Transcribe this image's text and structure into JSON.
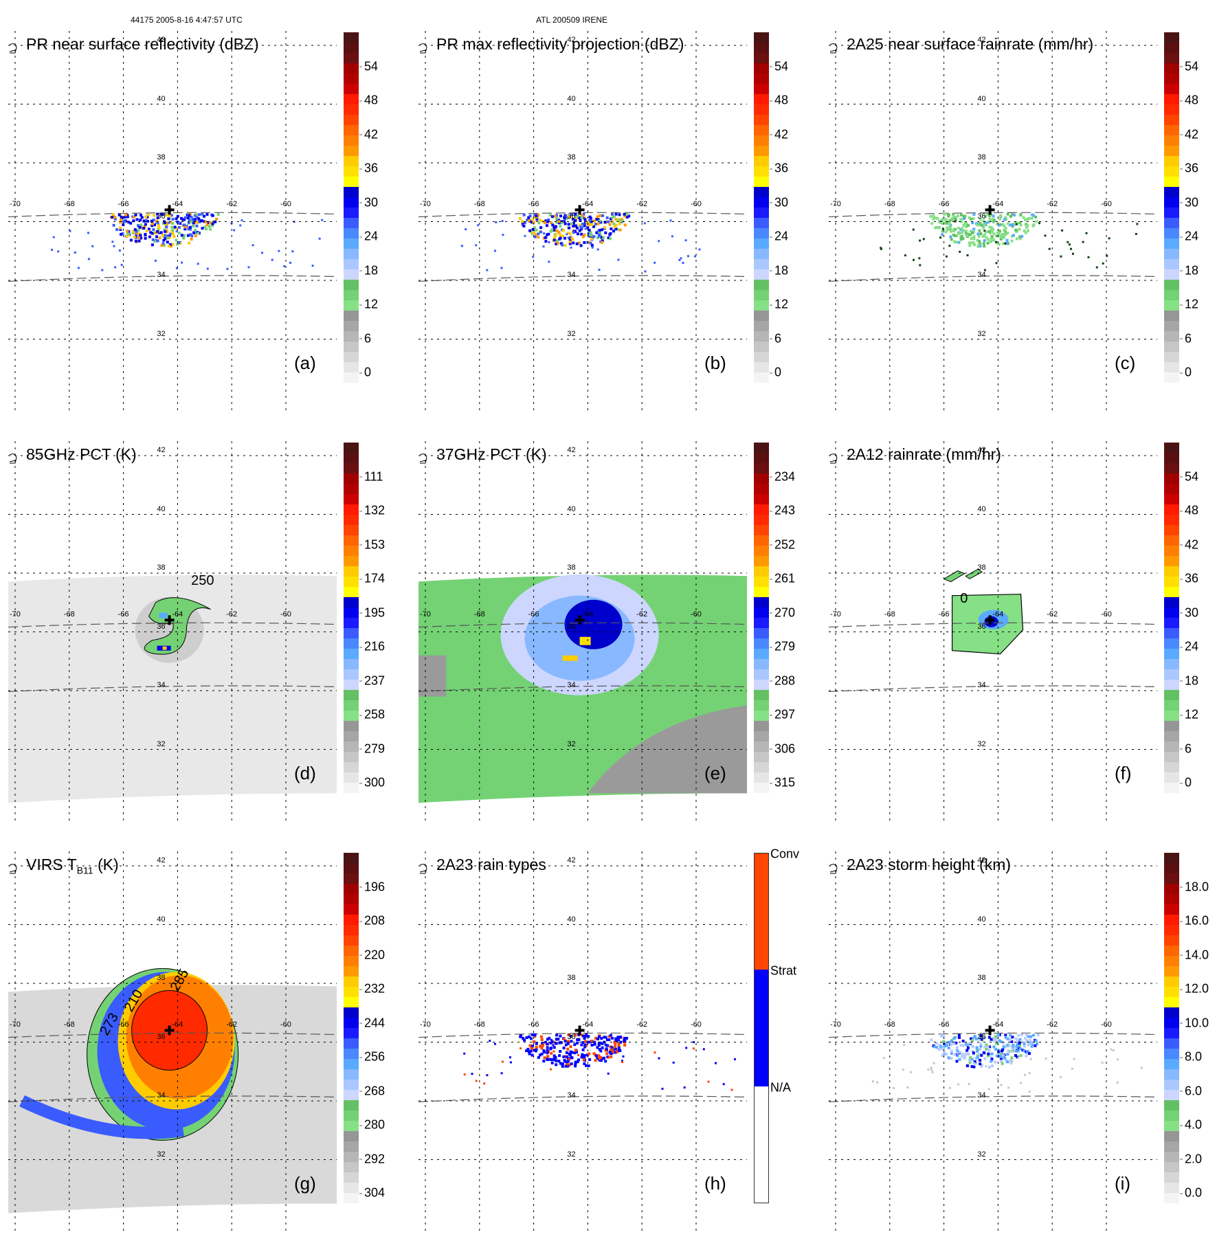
{
  "header": {
    "left": "44175 2005-8-16 4:47:57 UTC",
    "center": "ATL 200509 IRENE"
  },
  "chart_data": [
    {
      "id": "a",
      "type": "heatmap",
      "title": "PR near surface reflectivity (dBZ)",
      "panel_label": "(a)",
      "colorbar": {
        "ticks": [
          "54",
          "48",
          "42",
          "36",
          "30",
          "24",
          "18",
          "12",
          "6",
          "0"
        ],
        "range": [
          0,
          60
        ],
        "unit": "dBZ"
      },
      "field": "pr-swath",
      "contour_labels": []
    },
    {
      "id": "b",
      "type": "heatmap",
      "title": "PR max reflectivity projection (dBZ)",
      "panel_label": "(b)",
      "colorbar": {
        "ticks": [
          "54",
          "48",
          "42",
          "36",
          "30",
          "24",
          "18",
          "12",
          "6",
          "0"
        ],
        "range": [
          0,
          60
        ],
        "unit": "dBZ"
      },
      "field": "pr-swath",
      "contour_labels": []
    },
    {
      "id": "c",
      "type": "heatmap",
      "title": "2A25 near surface rainrate (mm/hr)",
      "panel_label": "(c)",
      "colorbar": {
        "ticks": [
          "54",
          "48",
          "42",
          "36",
          "30",
          "24",
          "18",
          "12",
          "6",
          "0"
        ],
        "range": [
          0,
          60
        ],
        "unit": "mm/hr"
      },
      "field": "pr-swath",
      "contour_labels": []
    },
    {
      "id": "d",
      "type": "heatmap",
      "title": "85GHz PCT (K)",
      "panel_label": "(d)",
      "colorbar": {
        "ticks": [
          "111",
          "132",
          "153",
          "174",
          "195",
          "216",
          "237",
          "258",
          "279",
          "300"
        ],
        "range": [
          300,
          90
        ],
        "unit": "K"
      },
      "field": "tmi-swath",
      "contour_labels": [
        "250"
      ]
    },
    {
      "id": "e",
      "type": "heatmap",
      "title": "37GHz PCT (K)",
      "panel_label": "(e)",
      "colorbar": {
        "ticks": [
          "234",
          "243",
          "252",
          "261",
          "270",
          "279",
          "288",
          "297",
          "306",
          "315"
        ],
        "range": [
          315,
          225
        ],
        "unit": "K"
      },
      "field": "tmi-swath",
      "contour_labels": []
    },
    {
      "id": "f",
      "type": "heatmap",
      "title": "2A12 rainrate (mm/hr)",
      "panel_label": "(f)",
      "colorbar": {
        "ticks": [
          "54",
          "48",
          "42",
          "36",
          "30",
          "24",
          "18",
          "12",
          "6",
          "0"
        ],
        "range": [
          0,
          60
        ],
        "unit": "mm/hr"
      },
      "field": "tmi-rain",
      "contour_labels": [
        "0"
      ]
    },
    {
      "id": "g",
      "type": "heatmap",
      "title": "VIRS T",
      "title_sub": "B11",
      "title_suffix": " (K)",
      "panel_label": "(g)",
      "colorbar": {
        "ticks": [
          "196",
          "208",
          "220",
          "232",
          "244",
          "256",
          "268",
          "280",
          "292",
          "304"
        ],
        "range": [
          304,
          184
        ],
        "unit": "K"
      },
      "field": "virs",
      "contour_labels": [
        "273",
        "210",
        "285"
      ]
    },
    {
      "id": "h",
      "type": "heatmap",
      "title": "2A23 rain types",
      "panel_label": "(h)",
      "colorbar": {
        "categorical": true,
        "categories": [
          "Conv",
          "Strat",
          "N/A"
        ],
        "colors": [
          "#ff4500",
          "#0000ff",
          "#ffffff"
        ]
      },
      "field": "pr-type",
      "contour_labels": []
    },
    {
      "id": "i",
      "type": "heatmap",
      "title": "2A23 storm height (km)",
      "panel_label": "(i)",
      "colorbar": {
        "ticks": [
          "18.0",
          "16.0",
          "14.0",
          "12.0",
          "10.0",
          "8.0",
          "6.0",
          "4.0",
          "2.0",
          "0.0"
        ],
        "range": [
          0,
          20
        ],
        "unit": "km"
      },
      "field": "pr-height",
      "contour_labels": []
    }
  ],
  "map": {
    "lon_ticks": [
      "-70",
      "-68",
      "-66",
      "-64",
      "-62",
      "-60"
    ],
    "lat_ticks": [
      "42",
      "40",
      "38",
      "36",
      "34",
      "32"
    ],
    "storm_center": {
      "lon": -64.3,
      "lat": 36.4
    }
  },
  "colors": {
    "colormap": [
      "#f4f4f4",
      "#e6e6e6",
      "#d6d6d6",
      "#c6c6c6",
      "#b6b6b6",
      "#a6a6a6",
      "#969696",
      "#86e086",
      "#74d274",
      "#64c064",
      "#ccd6ff",
      "#aac8ff",
      "#88b8ff",
      "#5aaaff",
      "#4a88ff",
      "#3a5cff",
      "#1a1aff",
      "#0000ee",
      "#0000cc",
      "#ffff00",
      "#ffe000",
      "#ffcc00",
      "#ff9900",
      "#ff8000",
      "#ff6600",
      "#ff4400",
      "#ff2a00",
      "#ff1a00",
      "#cc0000",
      "#b00000",
      "#a00000",
      "#6a1010",
      "#5a1010",
      "#4a1414"
    ]
  }
}
